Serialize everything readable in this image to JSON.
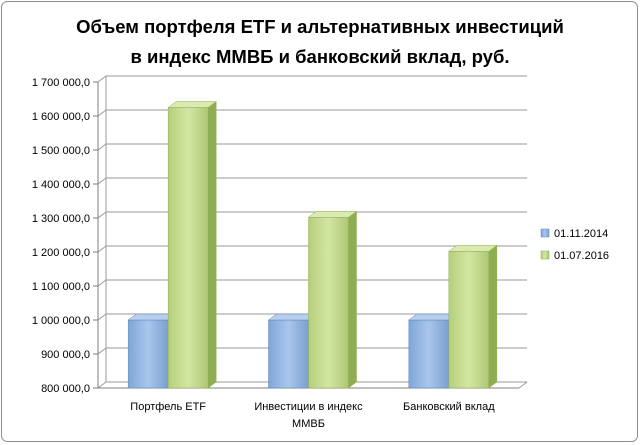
{
  "chart_data": {
    "type": "bar",
    "title_lines": [
      "Объем портфеля ETF и альтернативных  инвестиций",
      "в индекс ММВБ и банковский  вклад,  руб."
    ],
    "categories": [
      [
        "Портфель ETF"
      ],
      [
        "Инвестиции в индекс",
        "ММВБ"
      ],
      [
        "Банковский вклад"
      ]
    ],
    "series": [
      {
        "name": "01.11.2014",
        "values": [
          1000000,
          1000000,
          1000000
        ],
        "color": "#8eb4e3"
      },
      {
        "name": "01.07.2016",
        "values": [
          1625000,
          1302000,
          1202000
        ],
        "color": "#c3d98c"
      }
    ],
    "ylim": [
      800000,
      1700000
    ],
    "ytick_step": 100000,
    "yticks": [
      "800 000,0",
      "900 000,0",
      "1 000 000,0",
      "1 100 000,0",
      "1 200 000,0",
      "1 300 000,0",
      "1 400 000,0",
      "1 500 000,0",
      "1 600 000,0",
      "1 700 000,0"
    ],
    "grid": true,
    "legend_position": "right",
    "style": "3d-column"
  }
}
